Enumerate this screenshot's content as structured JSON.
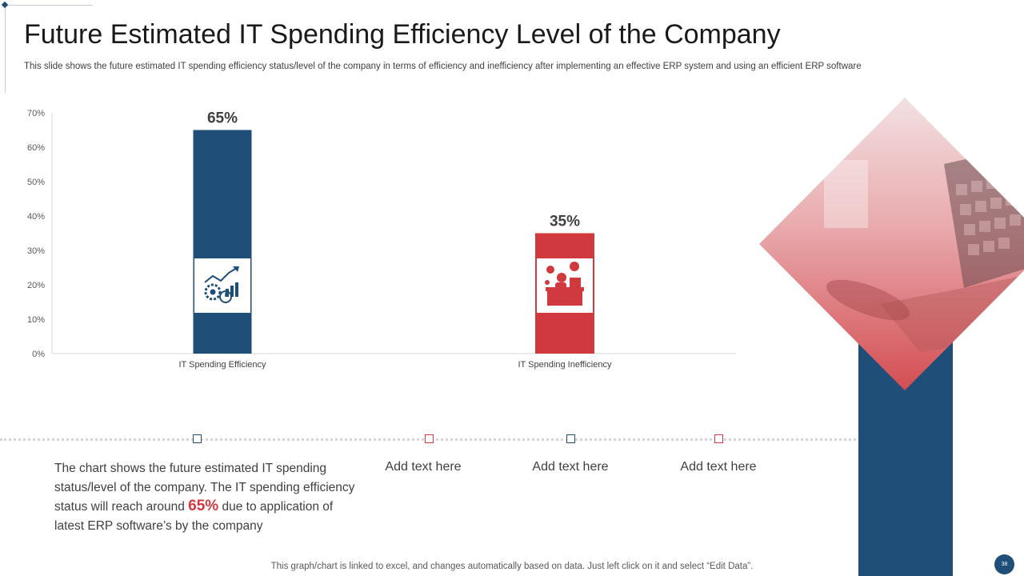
{
  "slide": {
    "title": "Future Estimated IT Spending Efficiency Level of the Company",
    "subtitle": "This slide shows the future estimated IT spending efficiency status/level of the company in terms of efficiency and inefficiency after implementing an effective ERP system and using an efficient ERP software",
    "footer": "This graph/chart is linked to excel,  and changes automatically based on data. Just left click on it and select “Edit Data”.",
    "page_number": "38"
  },
  "description": {
    "part1": "The chart shows the future  estimated IT  spending status/level  of the company. The IT  spending efficiency status will reach around ",
    "highlight": "65%",
    "part2": " due to application of latest ERP software’s by the company"
  },
  "add_texts": [
    "Add text here",
    "Add text here",
    "Add text here"
  ],
  "colors": {
    "efficiency": "#1f4e79",
    "inefficiency": "#d0393e",
    "gridline": "#d9d9d9",
    "text": "#404040"
  },
  "icons": {
    "efficiency": "growth-chart-gears-icon",
    "inefficiency": "stressed-worker-desk-icon",
    "photo": "laptop-photo"
  },
  "chart_data": {
    "type": "bar",
    "categories": [
      "IT Spending Efficiency",
      "IT Spending Inefficiency"
    ],
    "values": [
      65,
      35
    ],
    "data_labels": [
      "65%",
      "35%"
    ],
    "ylim": [
      0,
      70
    ],
    "yticks": [
      "0%",
      "10%",
      "20%",
      "30%",
      "40%",
      "50%",
      "60%",
      "70%"
    ],
    "title": "",
    "xlabel": "",
    "ylabel": "",
    "grid": false
  }
}
